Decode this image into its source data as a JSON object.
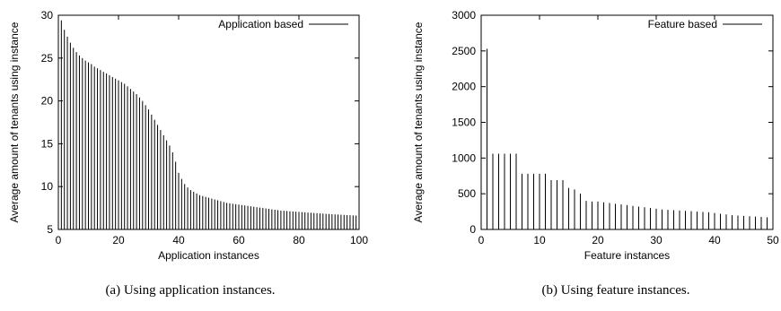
{
  "chart_data": [
    {
      "type": "bar",
      "ylabel": "Average amount of tenants using instance",
      "xlabel": "Application instances",
      "legend": {
        "label": "Application based",
        "position": "top-right"
      },
      "xlim": [
        0,
        100
      ],
      "ylim": [
        5,
        30
      ],
      "xticks": [
        0,
        20,
        40,
        60,
        80,
        100
      ],
      "yticks": [
        5,
        10,
        15,
        20,
        25,
        30
      ],
      "x": [
        1,
        2,
        3,
        4,
        5,
        6,
        7,
        8,
        9,
        10,
        11,
        12,
        13,
        14,
        15,
        16,
        17,
        18,
        19,
        20,
        21,
        22,
        23,
        24,
        25,
        26,
        27,
        28,
        29,
        30,
        31,
        32,
        33,
        34,
        35,
        36,
        37,
        38,
        39,
        40,
        41,
        42,
        43,
        44,
        45,
        46,
        47,
        48,
        49,
        50,
        51,
        52,
        53,
        54,
        55,
        56,
        57,
        58,
        59,
        60,
        61,
        62,
        63,
        64,
        65,
        66,
        67,
        68,
        69,
        70,
        71,
        72,
        73,
        74,
        75,
        76,
        77,
        78,
        79,
        80,
        81,
        82,
        83,
        84,
        85,
        86,
        87,
        88,
        89,
        90,
        91,
        92,
        93,
        94,
        95,
        96,
        97,
        98,
        99,
        100
      ],
      "values": [
        29.4,
        28.3,
        27.5,
        26.8,
        26.2,
        25.7,
        25.3,
        25.0,
        24.7,
        24.5,
        24.3,
        24.0,
        23.8,
        23.6,
        23.4,
        23.2,
        23.0,
        22.8,
        22.6,
        22.4,
        22.2,
        22.0,
        21.7,
        21.4,
        21.1,
        20.8,
        20.4,
        20.0,
        19.5,
        19.0,
        18.4,
        17.8,
        17.2,
        16.6,
        16.0,
        15.4,
        14.8,
        14.0,
        12.9,
        11.6,
        10.9,
        10.3,
        9.9,
        9.6,
        9.4,
        9.2,
        9.0,
        8.9,
        8.8,
        8.7,
        8.6,
        8.5,
        8.4,
        8.3,
        8.2,
        8.1,
        8.05,
        8.0,
        7.95,
        7.9,
        7.85,
        7.8,
        7.75,
        7.7,
        7.65,
        7.6,
        7.55,
        7.5,
        7.45,
        7.4,
        7.35,
        7.3,
        7.25,
        7.2,
        7.18,
        7.15,
        7.12,
        7.1,
        7.07,
        7.05,
        7.02,
        7.0,
        6.97,
        6.95,
        6.92,
        6.9,
        6.87,
        6.85,
        6.82,
        6.8,
        6.78,
        6.76,
        6.74,
        6.72,
        6.7,
        6.68,
        6.66,
        6.64,
        6.62,
        6.6
      ]
    },
    {
      "type": "bar",
      "ylabel": "Average amount of tenants using instance",
      "xlabel": "Feature instances",
      "legend": {
        "label": "Feature based",
        "position": "top-right"
      },
      "xlim": [
        0,
        50
      ],
      "ylim": [
        0,
        3000
      ],
      "xticks": [
        0,
        10,
        20,
        30,
        40,
        50
      ],
      "yticks": [
        0,
        500,
        1000,
        1500,
        2000,
        2500,
        3000
      ],
      "x": [
        1,
        2,
        3,
        4,
        5,
        6,
        7,
        8,
        9,
        10,
        11,
        12,
        13,
        14,
        15,
        16,
        17,
        18,
        19,
        20,
        21,
        22,
        23,
        24,
        25,
        26,
        27,
        28,
        29,
        30,
        31,
        32,
        33,
        34,
        35,
        36,
        37,
        38,
        39,
        40,
        41,
        42,
        43,
        44,
        45,
        46,
        47,
        48,
        49
      ],
      "values": [
        2530,
        1060,
        1060,
        1060,
        1060,
        1060,
        780,
        780,
        780,
        780,
        780,
        690,
        690,
        690,
        580,
        560,
        500,
        400,
        390,
        390,
        380,
        370,
        360,
        350,
        340,
        330,
        320,
        310,
        300,
        290,
        280,
        275,
        270,
        265,
        260,
        255,
        250,
        245,
        240,
        230,
        220,
        210,
        200,
        195,
        190,
        185,
        180,
        175,
        170
      ]
    }
  ],
  "captions": [
    "(a) Using application instances.",
    "(b) Using feature instances."
  ]
}
